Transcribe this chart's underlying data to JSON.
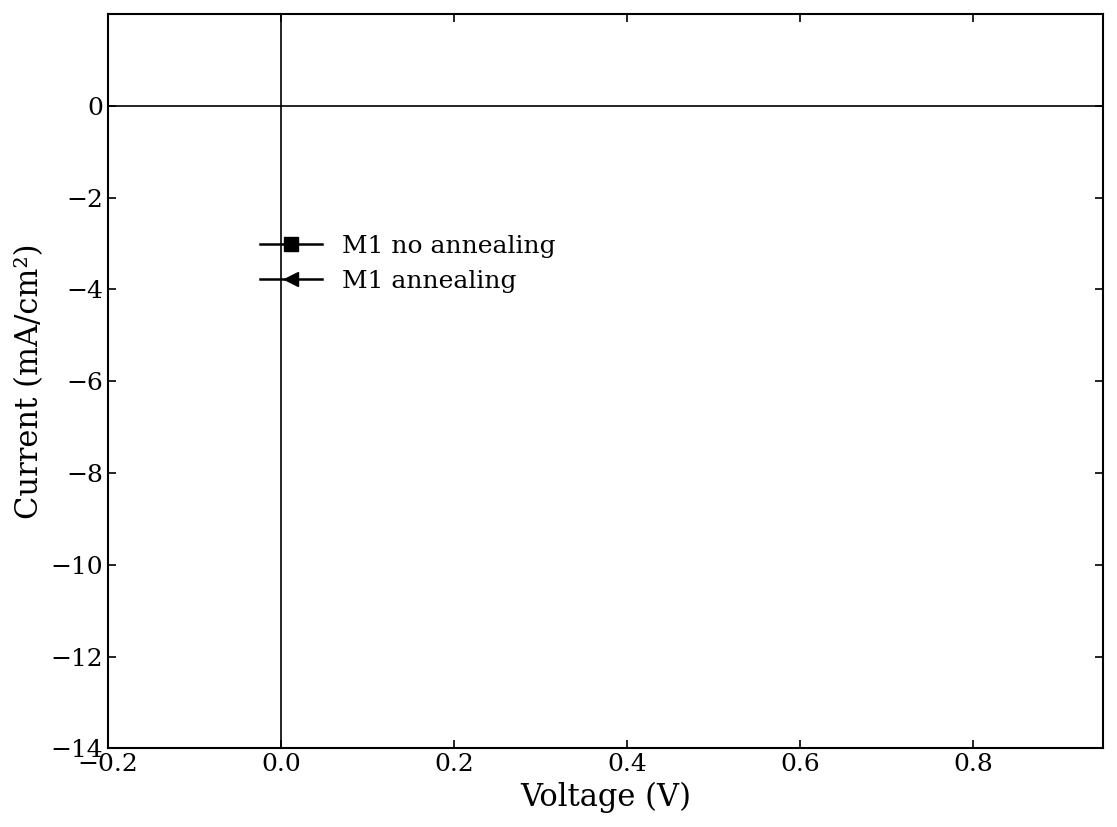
{
  "title": "",
  "xlabel": "Voltage (V)",
  "ylabel": "Current (mA/cm²)",
  "xlim": [
    -0.2,
    0.95
  ],
  "ylim": [
    -14,
    2
  ],
  "xticks": [
    -0.2,
    0.0,
    0.2,
    0.4,
    0.6,
    0.8
  ],
  "yticks": [
    0,
    -2,
    -4,
    -6,
    -8,
    -10,
    -12,
    -14
  ],
  "line_color": "#000000",
  "background_color": "#ffffff",
  "series1_name": "M1 no annealing",
  "series2_name": "M1 annealing",
  "series1_marker": "s",
  "series2_marker": "<",
  "series1_Jsc": -6.5,
  "series1_Voc": 0.875,
  "series1_n": 12.0,
  "series1_Rs": 8.0,
  "series1_Rsh": 300.0,
  "series2_Jsc": -11.5,
  "series2_Voc": 0.78,
  "series2_n": 5.0,
  "series2_Rs": 1.5,
  "series2_Rsh": 900.0,
  "vline_x": 0.0,
  "hline_y": 0.0,
  "xlabel_fontsize": 22,
  "ylabel_fontsize": 22,
  "tick_fontsize": 18,
  "legend_fontsize": 18,
  "linewidth": 1.8,
  "markersize": 10,
  "num_markers": 30
}
